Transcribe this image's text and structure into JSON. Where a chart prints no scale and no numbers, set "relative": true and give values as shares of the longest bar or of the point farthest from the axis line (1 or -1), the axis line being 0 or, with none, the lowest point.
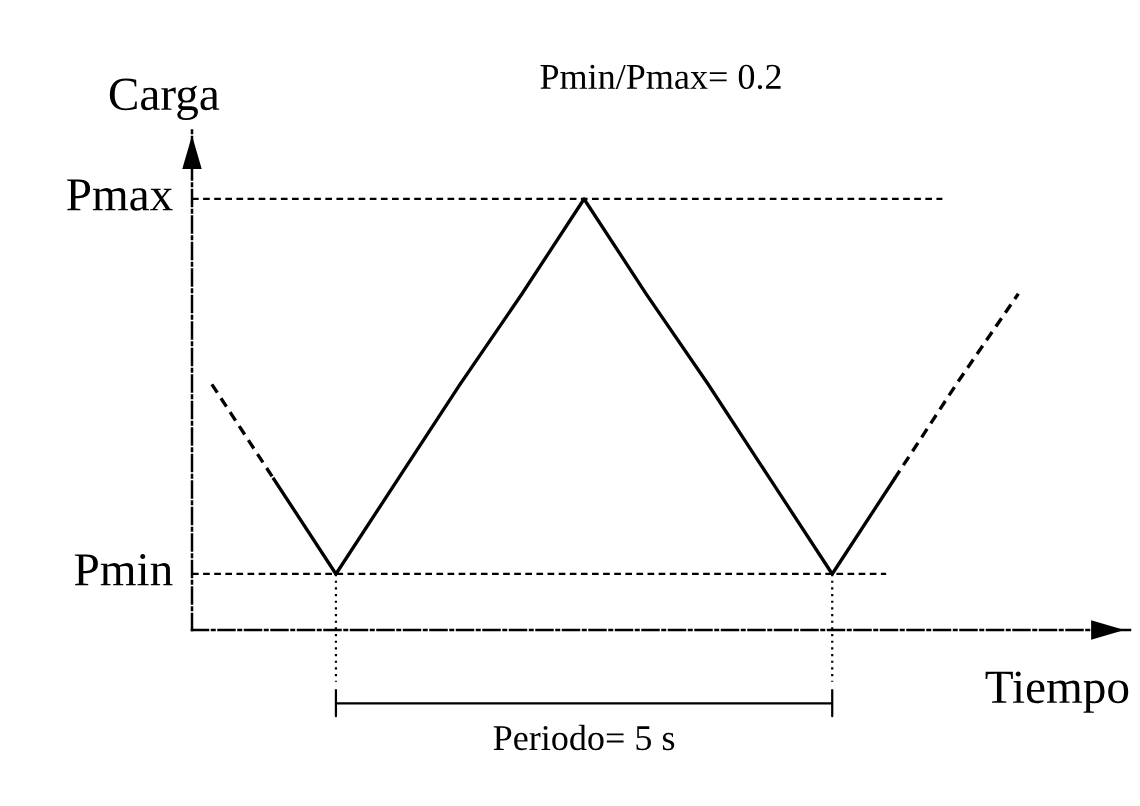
{
  "chart_data": {
    "type": "line",
    "relative": true,
    "xlabel": "Tiempo",
    "ylabel": "Carga",
    "categories": [
      null,
      null,
      null,
      null,
      null,
      null,
      null,
      null,
      null,
      null,
      null,
      null,
      null,
      null
    ],
    "series": [
      {
        "color": "#000000",
        "line_style": "dashed",
        "values": [
          0.57,
          0.35,
          null,
          null,
          null,
          null,
          null,
          null,
          null,
          null,
          null,
          null,
          null,
          null
        ]
      },
      {
        "color": "#000000",
        "line_style": "solid",
        "values": [
          null,
          0.35,
          0.13,
          0.35,
          0.57,
          0.78,
          1,
          0.78,
          0.57,
          0.35,
          0.13,
          0.35,
          null,
          null
        ]
      },
      {
        "color": "#000000",
        "line_style": "dashed",
        "values": [
          null,
          null,
          null,
          null,
          null,
          null,
          null,
          null,
          null,
          null,
          null,
          0.35,
          0.57,
          0.78
        ]
      }
    ],
    "ref_lines": [
      {
        "axis": "y",
        "value": 0.13,
        "label": "Pmin",
        "line_style": "dashed",
        "color": "#000000"
      },
      {
        "axis": "y",
        "value": 1,
        "label": "Pmax",
        "line_style": "dashed",
        "color": "#000000"
      }
    ],
    "annotations": [
      "Pmin/Pmax= 0.2",
      "Periodo= 5 s"
    ]
  }
}
